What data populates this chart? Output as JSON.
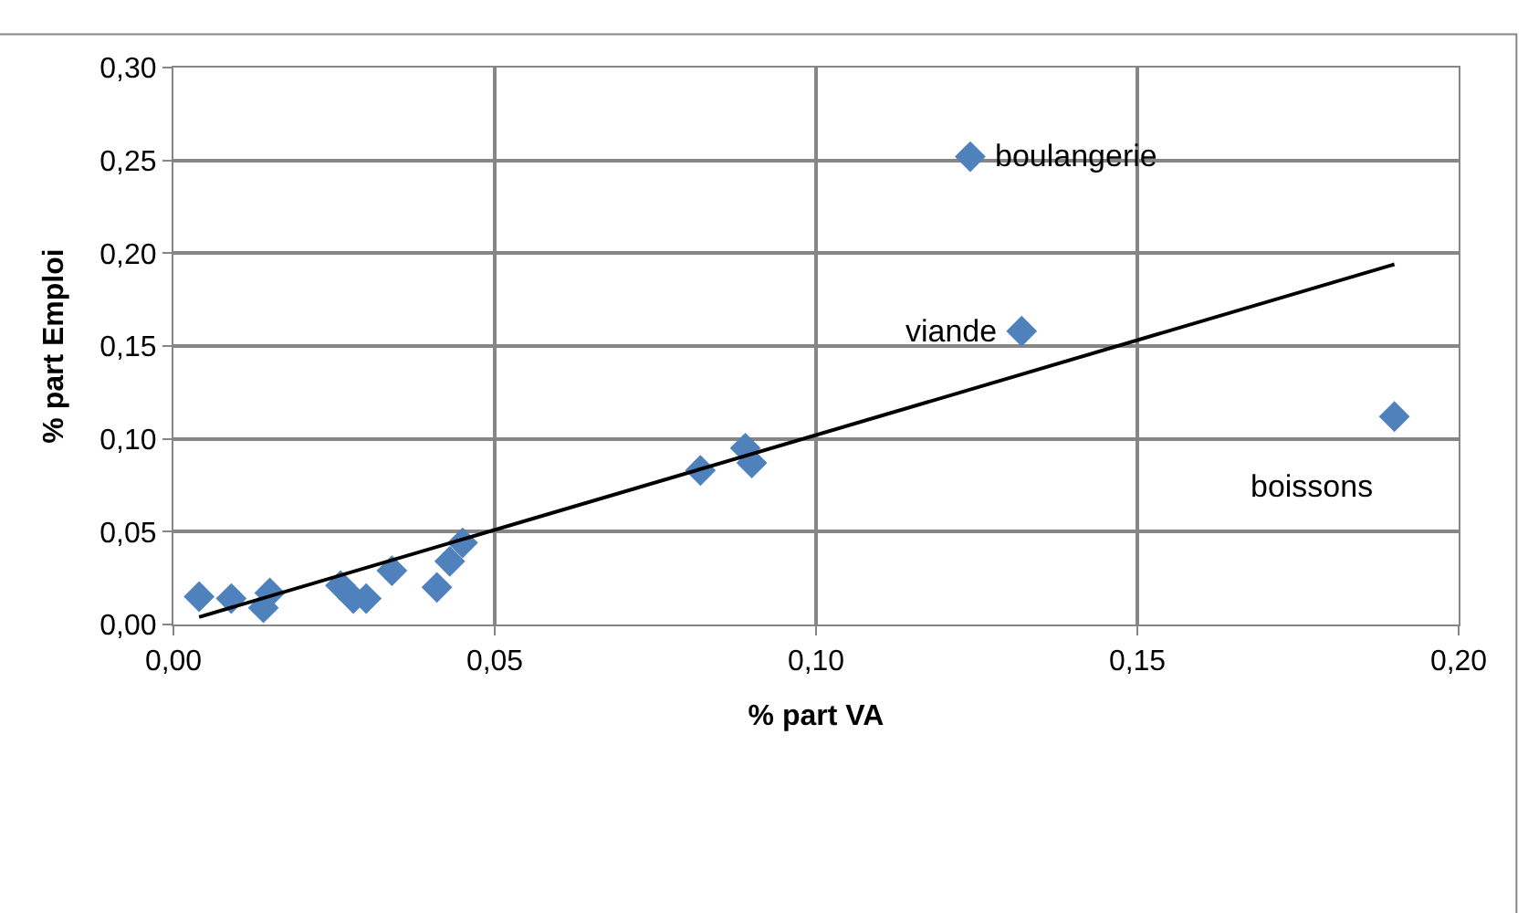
{
  "chart_data": {
    "type": "scatter",
    "xlabel": "% part VA",
    "ylabel": "% part Emploi",
    "series": [
      {
        "color": "#4f81bd",
        "marker": "diamond",
        "x": [
          0.004,
          0.009,
          0.015,
          0.014,
          0.026,
          0.028,
          0.03,
          0.034,
          0.041,
          0.043,
          0.045,
          0.082,
          0.089,
          0.09,
          0.124,
          0.132,
          0.19
        ],
        "values": [
          0.015,
          0.014,
          0.017,
          0.009,
          0.021,
          0.014,
          0.014,
          0.029,
          0.02,
          0.034,
          0.044,
          0.083,
          0.095,
          0.087,
          0.252,
          0.158,
          0.112
        ]
      },
      {
        "type": "line",
        "color": "#000000",
        "x": [
          0.004,
          0.19
        ],
        "values": [
          0.004,
          0.194
        ]
      }
    ],
    "annotations": [
      {
        "text": "boulangerie",
        "x": 0.124,
        "y": 0.252
      },
      {
        "text": "viande",
        "x": 0.132,
        "y": 0.158
      },
      {
        "text": "boissons",
        "x": 0.19,
        "y": 0.112
      }
    ],
    "xlim": [
      0,
      0.2
    ],
    "xticks": [
      {
        "value": 0,
        "label": "0,00"
      },
      {
        "value": 0.05,
        "label": "0,05"
      },
      {
        "value": 0.1,
        "label": "0,10"
      },
      {
        "value": 0.15,
        "label": "0,15"
      },
      {
        "value": 0.2,
        "label": "0,20"
      }
    ],
    "ylim": [
      0,
      0.3
    ],
    "yticks": [
      {
        "value": 0,
        "label": "0,00"
      },
      {
        "value": 0.05,
        "label": "0,05"
      },
      {
        "value": 0.1,
        "label": "0,10"
      },
      {
        "value": 0.15,
        "label": "0,15"
      },
      {
        "value": 0.2,
        "label": "0,20"
      },
      {
        "value": 0.25,
        "label": "0,25"
      },
      {
        "value": 0.3,
        "label": "0,30"
      }
    ],
    "grid": true,
    "legend": false
  }
}
